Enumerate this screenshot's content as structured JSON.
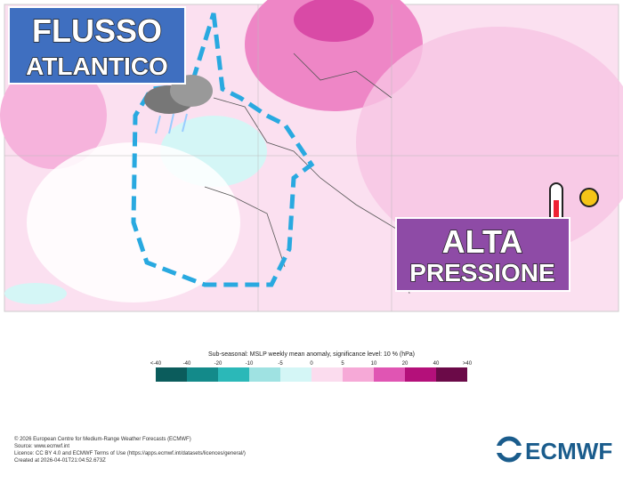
{
  "labels": {
    "left": [
      "FLUSSO",
      "ATLANTICO"
    ],
    "right": [
      "ALTA",
      "PRESSIONE"
    ]
  },
  "legend": {
    "title": "Sub-seasonal: MSLP weekly mean anomaly, significance level: 10 % (hPa)",
    "ticks": [
      "<-40",
      "-40",
      "-20",
      "-10",
      "-5",
      "0",
      "5",
      "10",
      "20",
      "40",
      ">40"
    ],
    "colors": [
      "#0b5c5c",
      "#138a8a",
      "#2bb8b8",
      "#9fe2e2",
      "#d4f6f6",
      "#fbdcee",
      "#f6a9d7",
      "#e055b3",
      "#b4107a",
      "#6b0a48"
    ]
  },
  "footer": [
    "© 2026 European Centre for Medium-Range Weather Forecasts (ECMWF)",
    "Source: www.ecmwf.int",
    "Licence: CC BY 4.0 and ECMWF Terms of Use (https://apps.ecmwf.int/datasets/licences/general/)",
    "Created at 2026-04-01T21:04:52.673Z"
  ],
  "logo": "ECMWF"
}
